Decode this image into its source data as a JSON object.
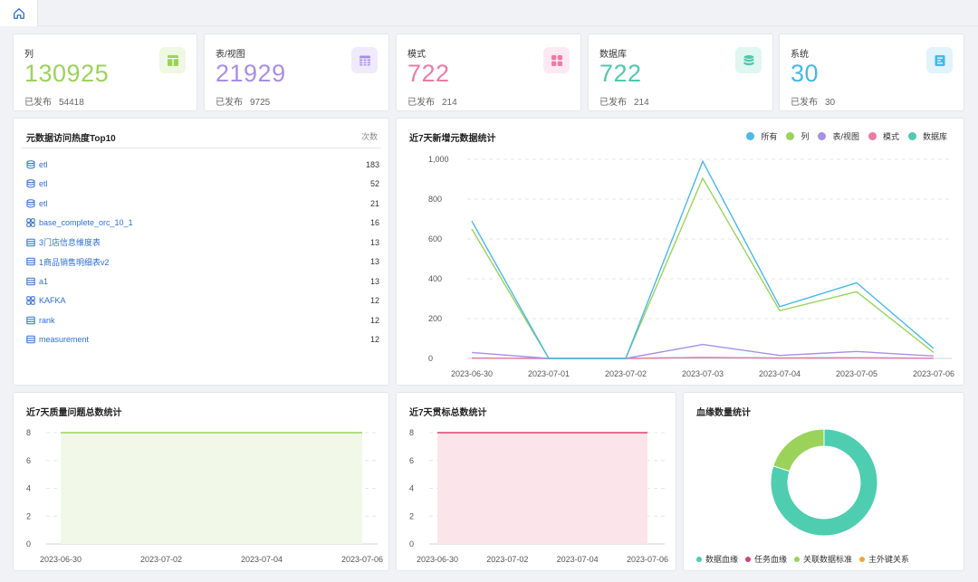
{
  "tabs": {
    "home_icon": "home-icon"
  },
  "stats": [
    {
      "label": "列",
      "value": "130925",
      "sub_label": "已发布",
      "sub_value": "54418",
      "color": "#9bd35a",
      "icon_bg": "#eef8e2",
      "icon": "columns-icon"
    },
    {
      "label": "表/视图",
      "value": "21929",
      "sub_label": "已发布",
      "sub_value": "9725",
      "color": "#a98ee8",
      "icon_bg": "#efeafc",
      "icon": "table-icon"
    },
    {
      "label": "模式",
      "value": "722",
      "sub_label": "已发布",
      "sub_value": "214",
      "color": "#ee7aa5",
      "icon_bg": "#fde9f1",
      "icon": "grid-icon"
    },
    {
      "label": "数据库",
      "value": "722",
      "sub_label": "已发布",
      "sub_value": "214",
      "color": "#4ec9ad",
      "icon_bg": "#e0f6f0",
      "icon": "database-icon"
    },
    {
      "label": "系统",
      "value": "30",
      "sub_label": "已发布",
      "sub_value": "30",
      "color": "#45b8e8",
      "icon_bg": "#e1f3fb",
      "icon": "system-icon"
    }
  ],
  "top10": {
    "title": "元数据访问热度Top10",
    "count_header": "次数",
    "items": [
      {
        "name": "etl",
        "count": "183",
        "icon": "database-icon"
      },
      {
        "name": "etl",
        "count": "52",
        "icon": "database-icon"
      },
      {
        "name": "etl",
        "count": "21",
        "icon": "database-icon"
      },
      {
        "name": "base_complete_orc_10_1",
        "count": "16",
        "icon": "schema-icon"
      },
      {
        "name": "3门店信息维度表",
        "count": "13",
        "icon": "table-icon"
      },
      {
        "name": "1商品销售明细表v2",
        "count": "13",
        "icon": "table-icon"
      },
      {
        "name": "a1",
        "count": "13",
        "icon": "table-icon"
      },
      {
        "name": "KAFKA",
        "count": "12",
        "icon": "schema-icon"
      },
      {
        "name": "rank",
        "count": "12",
        "icon": "table-icon"
      },
      {
        "name": "measurement",
        "count": "12",
        "icon": "table-icon"
      }
    ]
  },
  "chart_data": [
    {
      "type": "line",
      "title": "近7天新增元数据统计",
      "categories": [
        "2023-06-30",
        "2023-07-01",
        "2023-07-02",
        "2023-07-03",
        "2023-07-04",
        "2023-07-05",
        "2023-07-06"
      ],
      "ylim": [
        0,
        1000
      ],
      "yticks": [
        "0",
        "200",
        "400",
        "600",
        "800",
        "1,000"
      ],
      "legend_position": "top-right",
      "series": [
        {
          "name": "所有",
          "color": "#4ab8ee",
          "values": [
            690,
            0,
            0,
            990,
            260,
            380,
            50
          ]
        },
        {
          "name": "列",
          "color": "#9bd35a",
          "values": [
            650,
            0,
            0,
            905,
            240,
            335,
            30
          ]
        },
        {
          "name": "表/视图",
          "color": "#a98ee8",
          "values": [
            30,
            0,
            0,
            70,
            15,
            35,
            12
          ]
        },
        {
          "name": "模式",
          "color": "#ee7aa5",
          "values": [
            2,
            0,
            0,
            5,
            2,
            3,
            1
          ]
        },
        {
          "name": "数据库",
          "color": "#4ec9ad",
          "values": [
            2,
            0,
            0,
            5,
            2,
            3,
            1
          ]
        }
      ]
    },
    {
      "type": "area",
      "title": "近7天质量问题总数统计",
      "categories": [
        "2023-06-30",
        "2023-07-02",
        "2023-07-04",
        "2023-07-06"
      ],
      "ylim": [
        0,
        8
      ],
      "yticks": [
        "0",
        "2",
        "4",
        "6",
        "8"
      ],
      "values": [
        8,
        8,
        8,
        8
      ],
      "color": "#9bd35a",
      "fill": "#f1f8e8"
    },
    {
      "type": "area",
      "title": "近7天贯标总数统计",
      "categories": [
        "2023-06-30",
        "2023-07-02",
        "2023-07-04",
        "2023-07-06"
      ],
      "ylim": [
        0,
        8
      ],
      "yticks": [
        "0",
        "2",
        "4",
        "6",
        "8"
      ],
      "values": [
        8,
        8,
        8,
        8
      ],
      "color": "#d9416f",
      "fill": "#fbe4ea"
    },
    {
      "type": "pie",
      "title": "血缘数量统计",
      "slices": [
        {
          "name": "数据血缘",
          "value": 80,
          "color": "#4ecdb0"
        },
        {
          "name": "任务血缘",
          "value": 0,
          "color": "#d9416f"
        },
        {
          "name": "关联数据标准",
          "value": 20,
          "color": "#9bd35a"
        },
        {
          "name": "主外键关系",
          "value": 0,
          "color": "#f2a634"
        }
      ]
    }
  ]
}
